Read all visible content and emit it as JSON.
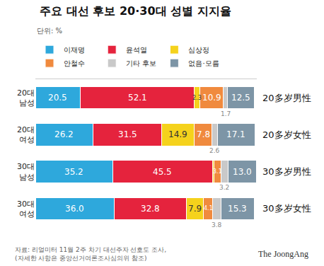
{
  "chart_data": {
    "type": "bar",
    "orientation": "horizontal",
    "stacked": true,
    "data_labels": true,
    "tick_labels": "y",
    "legend": "top",
    "title": "주요 대선 후보 20·30대 성별 지지율",
    "unit": "단위: %",
    "categories": [
      "20대\n남성",
      "20대\n여성",
      "30대\n남성",
      "30대\n여성"
    ],
    "category_notes": [
      "20多岁男性",
      "20多岁女性",
      "30多岁男性",
      "30多岁女性"
    ],
    "xlim": [
      0,
      101
    ],
    "series": [
      {
        "name": "이재명",
        "color": "#2ea8dc",
        "values": [
          20.5,
          26.2,
          35.2,
          36.0
        ],
        "value_labels": [
          "20.5",
          "26.2",
          "35.2",
          "36.0"
        ]
      },
      {
        "name": "윤석열",
        "color": "#e5233d",
        "values": [
          52.1,
          31.5,
          45.5,
          32.8
        ],
        "value_labels": [
          "52.1",
          "31.5",
          "45.5",
          "32.8"
        ]
      },
      {
        "name": "심상정",
        "color": "#f5d21c",
        "values": [
          2.3,
          14.9,
          0.8,
          7.9
        ],
        "value_labels": [
          "2.3",
          "14.9",
          null,
          "7.9"
        ]
      },
      {
        "name": "안철수",
        "color": "#f08a3e",
        "values": [
          10.9,
          7.8,
          3.1,
          4.1
        ],
        "value_labels": [
          "10.9",
          "7.8",
          "3.1",
          "4.1"
        ]
      },
      {
        "name": "기타 후보",
        "color": "#c9c9c9",
        "values": [
          1.7,
          2.6,
          3.2,
          3.8
        ],
        "value_labels": [
          "1.7",
          "2.6",
          "3.2",
          "3.8"
        ]
      },
      {
        "name": "없음·모름",
        "color": "#7d95a6",
        "values": [
          12.5,
          17.1,
          13.0,
          15.3
        ],
        "value_labels": [
          "12.5",
          "17.1",
          "13.0",
          "15.3"
        ]
      }
    ],
    "source": [
      "자료: 리얼미터 11월 2주 차기 대선주자 선호도 조사,",
      "(자세한 사항은 중앙선거여론조사심의위 참조)"
    ],
    "credit": "The JoongAng"
  }
}
